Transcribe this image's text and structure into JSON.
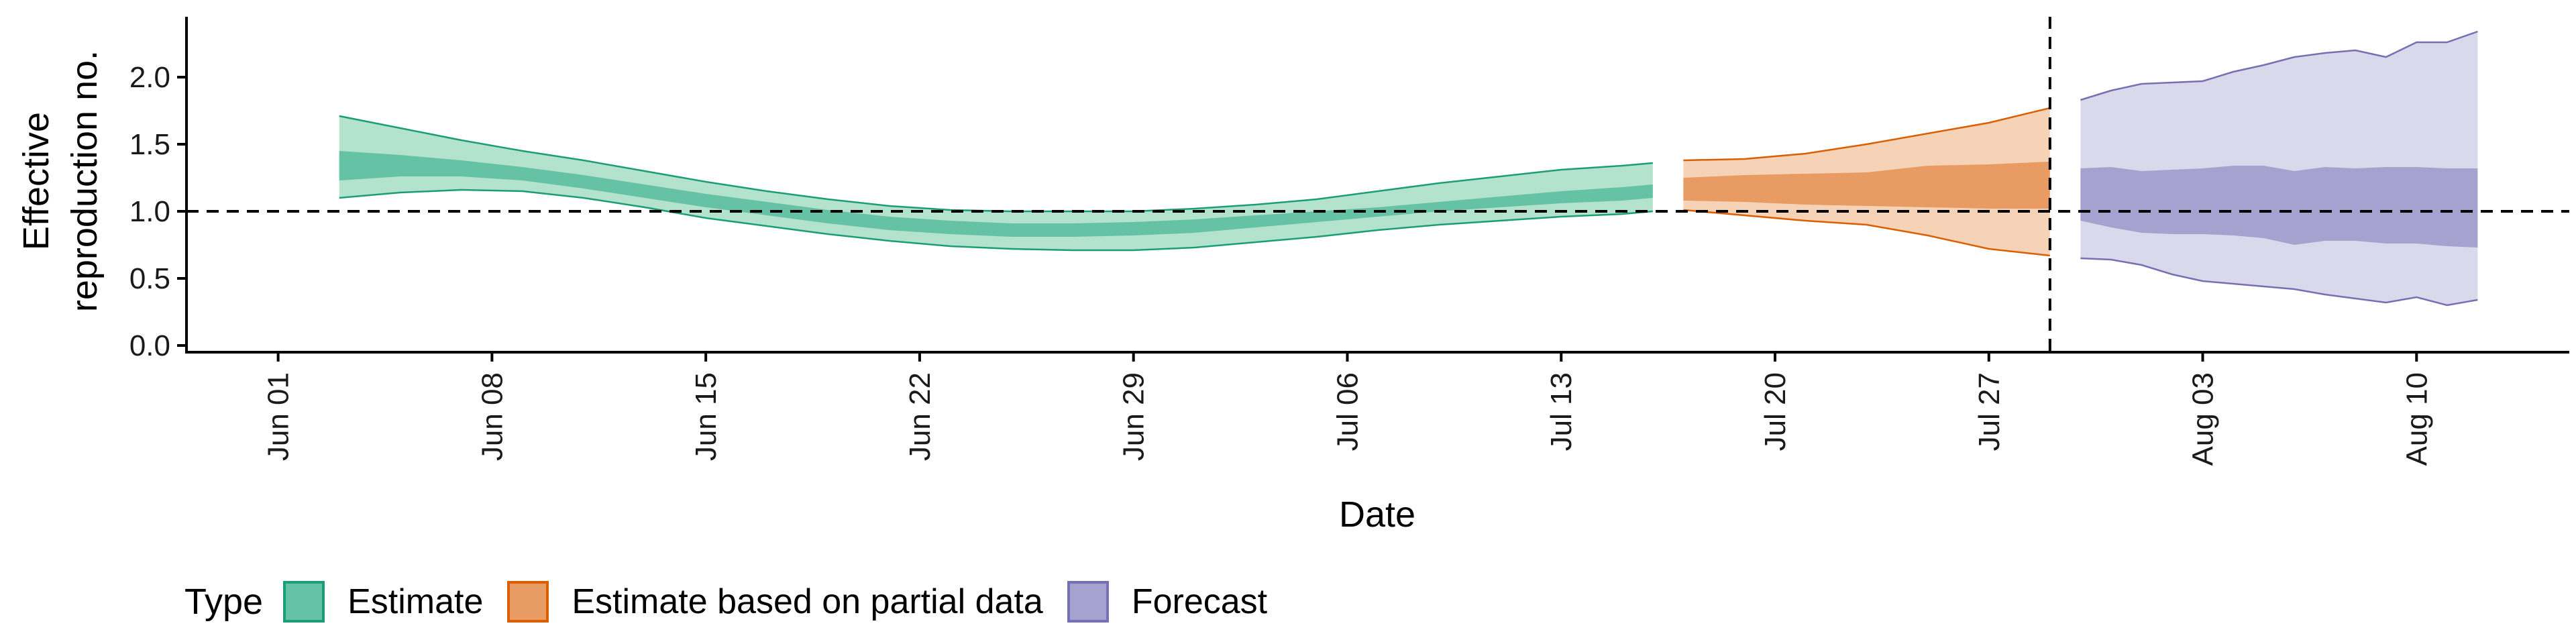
{
  "chart_data": {
    "type": "area",
    "title": "",
    "xlabel": "Date",
    "ylabel_lines": [
      "Effective",
      "reproduction no."
    ],
    "ylim": [
      -0.05,
      2.45
    ],
    "yticks": [
      0.0,
      0.5,
      1.0,
      1.5,
      2.0
    ],
    "ytick_labels": [
      "0.0",
      "0.5",
      "1.0",
      "1.5",
      "2.0"
    ],
    "xlim": [
      "2020-05-29",
      "2020-08-15"
    ],
    "xticks": [
      "2020-06-01",
      "2020-06-08",
      "2020-06-15",
      "2020-06-22",
      "2020-06-29",
      "2020-07-06",
      "2020-07-13",
      "2020-07-20",
      "2020-07-27",
      "2020-08-03",
      "2020-08-10"
    ],
    "xtick_labels": [
      "Jun 01",
      "Jun 08",
      "Jun 15",
      "Jun 22",
      "Jun 29",
      "Jul 06",
      "Jul 13",
      "Jul 20",
      "Jul 27",
      "Aug 03",
      "Aug 10"
    ],
    "hlines": [
      1.0
    ],
    "vlines": [
      "2020-07-29"
    ],
    "legend": {
      "title": "Type",
      "position": "bottom"
    },
    "series": [
      {
        "name": "Estimate",
        "fill": "#66c2a5",
        "fill_light": "#b3e2cd",
        "stroke": "#1b9e77",
        "x": [
          "2020-06-03",
          "2020-06-05",
          "2020-06-07",
          "2020-06-09",
          "2020-06-11",
          "2020-06-13",
          "2020-06-15",
          "2020-06-17",
          "2020-06-19",
          "2020-06-21",
          "2020-06-23",
          "2020-06-25",
          "2020-06-27",
          "2020-06-29",
          "2020-07-01",
          "2020-07-03",
          "2020-07-05",
          "2020-07-07",
          "2020-07-09",
          "2020-07-11",
          "2020-07-13",
          "2020-07-15",
          "2020-07-16"
        ],
        "lower90": [
          1.1,
          1.14,
          1.16,
          1.15,
          1.1,
          1.03,
          0.95,
          0.89,
          0.83,
          0.78,
          0.74,
          0.72,
          0.71,
          0.71,
          0.73,
          0.77,
          0.81,
          0.86,
          0.9,
          0.93,
          0.96,
          0.98,
          1.0
        ],
        "lower50": [
          1.23,
          1.26,
          1.26,
          1.23,
          1.17,
          1.1,
          1.03,
          0.97,
          0.91,
          0.86,
          0.83,
          0.81,
          0.81,
          0.82,
          0.84,
          0.88,
          0.92,
          0.96,
          1.0,
          1.03,
          1.06,
          1.08,
          1.1
        ],
        "upper50": [
          1.45,
          1.42,
          1.38,
          1.33,
          1.27,
          1.2,
          1.13,
          1.07,
          1.01,
          0.96,
          0.93,
          0.91,
          0.91,
          0.92,
          0.94,
          0.97,
          1.0,
          1.03,
          1.07,
          1.11,
          1.15,
          1.18,
          1.2
        ],
        "upper90": [
          1.71,
          1.62,
          1.53,
          1.45,
          1.38,
          1.3,
          1.22,
          1.15,
          1.09,
          1.04,
          1.01,
          1.0,
          1.0,
          1.0,
          1.02,
          1.05,
          1.09,
          1.15,
          1.21,
          1.26,
          1.31,
          1.34,
          1.36
        ]
      },
      {
        "name": "Estimate based on partial data",
        "fill": "#e89b62",
        "fill_light": "#f6d3b7",
        "stroke": "#d95f02",
        "x": [
          "2020-07-17",
          "2020-07-19",
          "2020-07-21",
          "2020-07-23",
          "2020-07-25",
          "2020-07-27",
          "2020-07-29"
        ],
        "lower90": [
          1.01,
          0.97,
          0.93,
          0.9,
          0.82,
          0.72,
          0.67
        ],
        "lower50": [
          1.08,
          1.07,
          1.05,
          1.04,
          1.03,
          1.02,
          1.02
        ],
        "upper50": [
          1.25,
          1.27,
          1.28,
          1.29,
          1.34,
          1.35,
          1.37
        ],
        "upper90": [
          1.38,
          1.39,
          1.43,
          1.5,
          1.58,
          1.66,
          1.77
        ]
      },
      {
        "name": "Forecast",
        "fill": "#a6a2cf",
        "fill_light": "#dad9ec",
        "stroke": "#7570b3",
        "x": [
          "2020-07-30",
          "2020-07-31",
          "2020-08-01",
          "2020-08-02",
          "2020-08-03",
          "2020-08-04",
          "2020-08-05",
          "2020-08-06",
          "2020-08-07",
          "2020-08-08",
          "2020-08-09",
          "2020-08-10",
          "2020-08-11",
          "2020-08-12"
        ],
        "lower90": [
          0.65,
          0.64,
          0.6,
          0.53,
          0.48,
          0.46,
          0.44,
          0.42,
          0.38,
          0.35,
          0.32,
          0.36,
          0.3,
          0.34
        ],
        "lower50": [
          0.93,
          0.88,
          0.84,
          0.83,
          0.83,
          0.82,
          0.8,
          0.75,
          0.78,
          0.78,
          0.76,
          0.76,
          0.74,
          0.73
        ],
        "upper50": [
          1.32,
          1.33,
          1.3,
          1.31,
          1.32,
          1.34,
          1.34,
          1.3,
          1.33,
          1.32,
          1.33,
          1.33,
          1.32,
          1.32
        ],
        "upper90": [
          1.83,
          1.9,
          1.95,
          1.96,
          1.97,
          2.04,
          2.09,
          2.15,
          2.18,
          2.2,
          2.15,
          2.26,
          2.26,
          2.34
        ]
      }
    ]
  }
}
